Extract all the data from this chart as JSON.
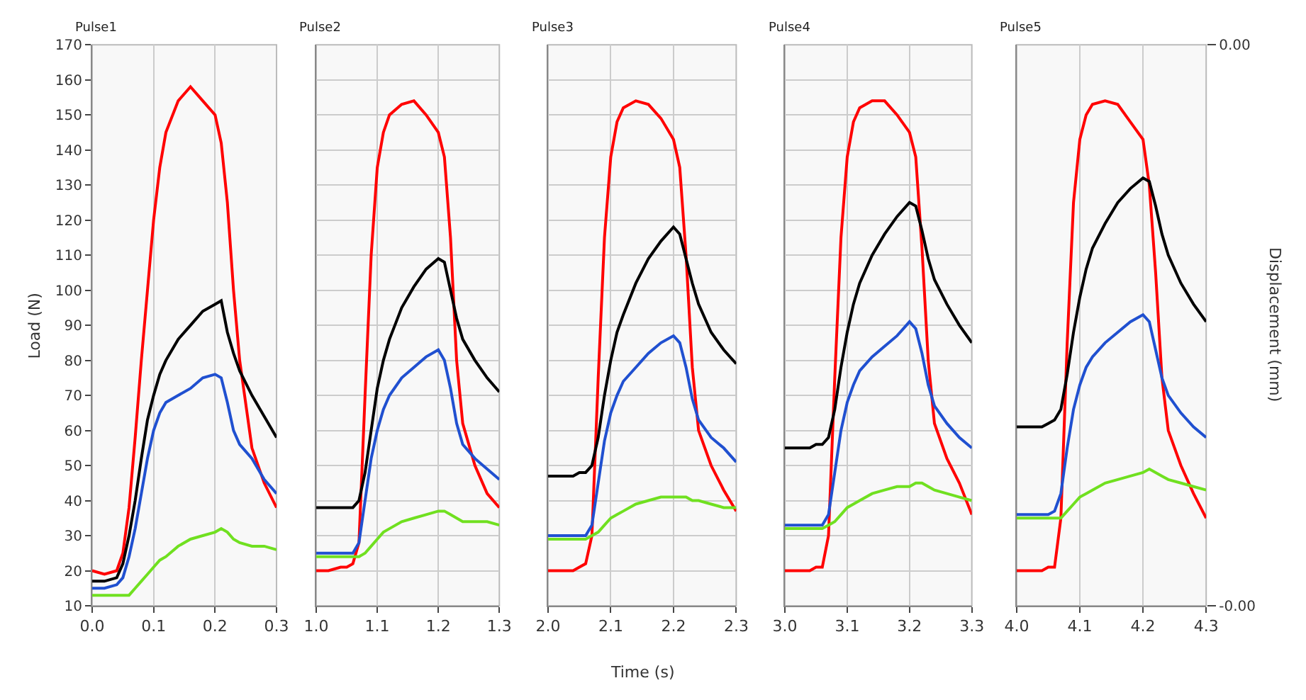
{
  "chart_data": [
    {
      "type": "line",
      "title": "Pulse1",
      "ylabel": "Load (N)",
      "xlim": [
        0.0,
        0.3
      ],
      "xticks": [
        {
          "value": 0.0,
          "label": "0.0"
        },
        0.1,
        0.2,
        0.3
      ],
      "ylim": [
        10,
        170
      ],
      "yticks": [
        10,
        20,
        30,
        40,
        50,
        60,
        70,
        80,
        90,
        100,
        110,
        120,
        130,
        140,
        150,
        160,
        170
      ],
      "grid": "x",
      "x": [
        0.0,
        0.02,
        0.04,
        0.05,
        0.06,
        0.07,
        0.08,
        0.09,
        0.1,
        0.11,
        0.12,
        0.14,
        0.16,
        0.18,
        0.2,
        0.21,
        0.22,
        0.23,
        0.24,
        0.26,
        0.28,
        0.3
      ],
      "series": [
        {
          "color": "#ff0000",
          "values": [
            20,
            19,
            20,
            25,
            38,
            58,
            80,
            100,
            120,
            135,
            145,
            154,
            158,
            154,
            150,
            142,
            125,
            100,
            80,
            55,
            45,
            38
          ]
        },
        {
          "color": "#000000",
          "values": [
            17,
            17,
            18,
            22,
            30,
            40,
            52,
            63,
            70,
            76,
            80,
            86,
            90,
            94,
            96,
            97,
            88,
            82,
            77,
            70,
            64,
            58
          ]
        },
        {
          "color": "#2050d0",
          "values": [
            15,
            15,
            16,
            18,
            24,
            32,
            42,
            52,
            60,
            65,
            68,
            70,
            72,
            75,
            76,
            75,
            68,
            60,
            56,
            52,
            46,
            42
          ]
        },
        {
          "color": "#70e020",
          "values": [
            13,
            13,
            13,
            13,
            13,
            15,
            17,
            19,
            21,
            23,
            24,
            27,
            29,
            30,
            31,
            32,
            31,
            29,
            28,
            27,
            27,
            26
          ]
        }
      ]
    },
    {
      "type": "line",
      "title": "Pulse2",
      "xlim": [
        1.0,
        1.3
      ],
      "xticks": [
        {
          "value": 1.0,
          "label": "1.0"
        },
        1.1,
        1.2,
        1.3
      ],
      "ylim": [
        10,
        170
      ],
      "yticks": [
        10,
        20,
        30,
        40,
        50,
        60,
        70,
        80,
        90,
        100,
        110,
        120,
        130,
        140,
        150,
        160,
        170
      ],
      "grid": true,
      "tick_labels": "x",
      "x": [
        1.0,
        1.02,
        1.04,
        1.05,
        1.06,
        1.07,
        1.08,
        1.09,
        1.1,
        1.11,
        1.12,
        1.14,
        1.16,
        1.18,
        1.2,
        1.21,
        1.22,
        1.23,
        1.24,
        1.26,
        1.28,
        1.3
      ],
      "series": [
        {
          "color": "#ff0000",
          "values": [
            20,
            20,
            21,
            21,
            22,
            28,
            70,
            110,
            135,
            145,
            150,
            153,
            154,
            150,
            145,
            138,
            115,
            80,
            62,
            50,
            42,
            38
          ]
        },
        {
          "color": "#000000",
          "values": [
            38,
            38,
            38,
            38,
            38,
            40,
            48,
            60,
            72,
            80,
            86,
            95,
            101,
            106,
            109,
            108,
            100,
            92,
            86,
            80,
            75,
            71
          ]
        },
        {
          "color": "#2050d0",
          "values": [
            25,
            25,
            25,
            25,
            25,
            28,
            40,
            52,
            60,
            66,
            70,
            75,
            78,
            81,
            83,
            80,
            72,
            62,
            56,
            52,
            49,
            46
          ]
        },
        {
          "color": "#70e020",
          "values": [
            24,
            24,
            24,
            24,
            24,
            24,
            25,
            27,
            29,
            31,
            32,
            34,
            35,
            36,
            37,
            37,
            36,
            35,
            34,
            34,
            34,
            33
          ]
        }
      ]
    },
    {
      "type": "line",
      "title": "Pulse3",
      "xlabel": "Time (s)",
      "xlim": [
        2.0,
        2.3
      ],
      "xticks": [
        {
          "value": 2.0,
          "label": "2.0"
        },
        2.1,
        2.2,
        2.3
      ],
      "ylim": [
        10,
        170
      ],
      "yticks": [
        10,
        20,
        30,
        40,
        50,
        60,
        70,
        80,
        90,
        100,
        110,
        120,
        130,
        140,
        150,
        160,
        170
      ],
      "grid": true,
      "tick_labels": "x",
      "x": [
        2.0,
        2.02,
        2.04,
        2.05,
        2.06,
        2.07,
        2.08,
        2.09,
        2.1,
        2.11,
        2.12,
        2.14,
        2.16,
        2.18,
        2.2,
        2.21,
        2.22,
        2.23,
        2.24,
        2.26,
        2.28,
        2.3
      ],
      "series": [
        {
          "color": "#ff0000",
          "values": [
            20,
            20,
            20,
            21,
            22,
            30,
            75,
            115,
            138,
            148,
            152,
            154,
            153,
            149,
            143,
            135,
            110,
            78,
            60,
            50,
            43,
            37
          ]
        },
        {
          "color": "#000000",
          "values": [
            47,
            47,
            47,
            48,
            48,
            50,
            58,
            70,
            80,
            88,
            93,
            102,
            109,
            114,
            118,
            116,
            109,
            102,
            96,
            88,
            83,
            79
          ]
        },
        {
          "color": "#2050d0",
          "values": [
            30,
            30,
            30,
            30,
            30,
            33,
            45,
            57,
            65,
            70,
            74,
            78,
            82,
            85,
            87,
            85,
            78,
            69,
            63,
            58,
            55,
            51
          ]
        },
        {
          "color": "#70e020",
          "values": [
            29,
            29,
            29,
            29,
            29,
            30,
            31,
            33,
            35,
            36,
            37,
            39,
            40,
            41,
            41,
            41,
            41,
            40,
            40,
            39,
            38,
            38
          ]
        }
      ]
    },
    {
      "type": "line",
      "title": "Pulse4",
      "xlim": [
        3.0,
        3.3
      ],
      "xticks": [
        {
          "value": 3.0,
          "label": "3.0"
        },
        3.1,
        3.2,
        3.3
      ],
      "ylim": [
        10,
        170
      ],
      "yticks": [
        10,
        20,
        30,
        40,
        50,
        60,
        70,
        80,
        90,
        100,
        110,
        120,
        130,
        140,
        150,
        160,
        170
      ],
      "grid": true,
      "tick_labels": "x",
      "x": [
        3.0,
        3.02,
        3.04,
        3.05,
        3.06,
        3.07,
        3.08,
        3.09,
        3.1,
        3.11,
        3.12,
        3.14,
        3.16,
        3.18,
        3.2,
        3.21,
        3.22,
        3.23,
        3.24,
        3.26,
        3.28,
        3.3
      ],
      "series": [
        {
          "color": "#ff0000",
          "values": [
            20,
            20,
            20,
            21,
            21,
            30,
            75,
            115,
            138,
            148,
            152,
            154,
            154,
            150,
            145,
            138,
            112,
            80,
            62,
            52,
            45,
            36
          ]
        },
        {
          "color": "#000000",
          "values": [
            55,
            55,
            55,
            56,
            56,
            58,
            66,
            78,
            88,
            96,
            102,
            110,
            116,
            121,
            125,
            124,
            117,
            109,
            103,
            96,
            90,
            85
          ]
        },
        {
          "color": "#2050d0",
          "values": [
            33,
            33,
            33,
            33,
            33,
            36,
            48,
            60,
            68,
            73,
            77,
            81,
            84,
            87,
            91,
            89,
            82,
            73,
            67,
            62,
            58,
            55
          ]
        },
        {
          "color": "#70e020",
          "values": [
            32,
            32,
            32,
            32,
            32,
            33,
            34,
            36,
            38,
            39,
            40,
            42,
            43,
            44,
            44,
            45,
            45,
            44,
            43,
            42,
            41,
            40
          ]
        }
      ]
    },
    {
      "type": "line",
      "title": "Pulse5",
      "y2label": "Displacement (mm)",
      "xlim": [
        4.0,
        4.3
      ],
      "xticks": [
        {
          "value": 4.0,
          "label": "4.0"
        },
        4.1,
        4.2,
        4.3
      ],
      "ylim": [
        10,
        170
      ],
      "yticks": [
        10,
        20,
        30,
        40,
        50,
        60,
        70,
        80,
        90,
        100,
        110,
        120,
        130,
        140,
        150,
        160,
        170
      ],
      "y2lim": [
        -0.004,
        0.004
      ],
      "y2ticks": [
        {
          "value": -0.004,
          "label": "-0.00"
        },
        {
          "value": 0.004,
          "label": "0.00"
        }
      ],
      "grid": "x",
      "tick_labels": "x",
      "x": [
        4.0,
        4.02,
        4.04,
        4.05,
        4.06,
        4.07,
        4.08,
        4.09,
        4.1,
        4.11,
        4.12,
        4.14,
        4.16,
        4.18,
        4.2,
        4.21,
        4.22,
        4.23,
        4.24,
        4.26,
        4.28,
        4.3
      ],
      "series": [
        {
          "color": "#ff0000",
          "values": [
            20,
            20,
            20,
            21,
            21,
            35,
            85,
            125,
            143,
            150,
            153,
            154,
            153,
            148,
            143,
            130,
            105,
            75,
            60,
            50,
            42,
            35
          ]
        },
        {
          "color": "#000000",
          "values": [
            61,
            61,
            61,
            62,
            63,
            66,
            76,
            88,
            98,
            106,
            112,
            119,
            125,
            129,
            132,
            131,
            124,
            116,
            110,
            102,
            96,
            91
          ]
        },
        {
          "color": "#2050d0",
          "values": [
            36,
            36,
            36,
            36,
            37,
            42,
            55,
            66,
            73,
            78,
            81,
            85,
            88,
            91,
            93,
            91,
            83,
            75,
            70,
            65,
            61,
            58
          ]
        },
        {
          "color": "#70e020",
          "values": [
            35,
            35,
            35,
            35,
            35,
            35,
            37,
            39,
            41,
            42,
            43,
            45,
            46,
            47,
            48,
            49,
            48,
            47,
            46,
            45,
            44,
            43
          ]
        }
      ]
    }
  ]
}
